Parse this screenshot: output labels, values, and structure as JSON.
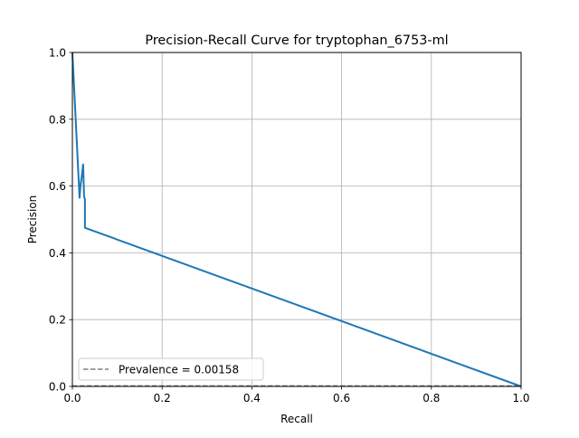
{
  "chart_data": {
    "type": "line",
    "title": "Precision-Recall Curve for tryptophan_6753-ml",
    "xlabel": "Recall",
    "ylabel": "Precision",
    "xlim": [
      0,
      1
    ],
    "ylim": [
      0,
      1
    ],
    "x_ticks": [
      0.0,
      0.2,
      0.4,
      0.6,
      0.8,
      1.0
    ],
    "y_ticks": [
      0.0,
      0.2,
      0.4,
      0.6,
      0.8,
      1.0
    ],
    "x_tick_labels": [
      "0.0",
      "0.2",
      "0.4",
      "0.6",
      "0.8",
      "1.0"
    ],
    "y_tick_labels": [
      "0.0",
      "0.2",
      "0.4",
      "0.6",
      "0.8",
      "1.0"
    ],
    "grid": true,
    "legend_position": "lower-left",
    "series": [
      {
        "color": "#1f77b4",
        "style": "solid",
        "x": [
          0.0,
          0.016,
          0.018,
          0.021,
          0.024,
          0.026,
          0.028,
          0.028,
          1.0
        ],
        "y": [
          1.0,
          0.565,
          0.6,
          0.63,
          0.665,
          0.57,
          0.56,
          0.475,
          0.0
        ]
      }
    ],
    "reference_lines": [
      {
        "name": "Prevalence = 0.00158",
        "orientation": "horizontal",
        "y": 0.00158,
        "color": "#808080",
        "style": "dashed"
      }
    ]
  }
}
